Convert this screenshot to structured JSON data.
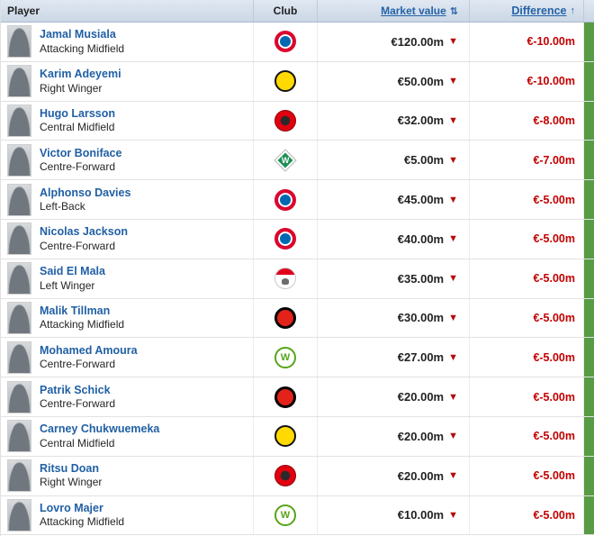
{
  "header": {
    "player": "Player",
    "club": "Club",
    "market_value": "Market value",
    "market_sort_icon": "⇅",
    "difference": "Difference",
    "difference_sort_icon": "↑"
  },
  "icons": {
    "down_arrow": "▼"
  },
  "clubs": {
    "bayern": {
      "name": "Bayern Munich"
    },
    "dortmund": {
      "name": "Borussia Dortmund"
    },
    "frankfurt": {
      "name": "Eintracht Frankfurt"
    },
    "bremen": {
      "name": "Werder Bremen",
      "letter": "W"
    },
    "koeln": {
      "name": "1. FC Köln"
    },
    "leverkusen": {
      "name": "Bayer 04 Leverkusen"
    },
    "wolfsburg": {
      "name": "VfL Wolfsburg",
      "letter": "W"
    }
  },
  "colors": {
    "header_bg": "#d3deea",
    "link_blue": "#2563a8",
    "negative_red": "#c20000",
    "strip_green": "#579b44"
  },
  "table": {
    "rows": [
      {
        "name": "Jamal Musiala",
        "position": "Attacking Midfield",
        "club": "bayern",
        "market_value": "€120.00m",
        "difference": "€-10.00m"
      },
      {
        "name": "Karim Adeyemi",
        "position": "Right Winger",
        "club": "dortmund",
        "market_value": "€50.00m",
        "difference": "€-10.00m"
      },
      {
        "name": "Hugo Larsson",
        "position": "Central Midfield",
        "club": "frankfurt",
        "market_value": "€32.00m",
        "difference": "€-8.00m"
      },
      {
        "name": "Victor Boniface",
        "position": "Centre-Forward",
        "club": "bremen",
        "market_value": "€5.00m",
        "difference": "€-7.00m"
      },
      {
        "name": "Alphonso Davies",
        "position": "Left-Back",
        "club": "bayern",
        "market_value": "€45.00m",
        "difference": "€-5.00m"
      },
      {
        "name": "Nicolas Jackson",
        "position": "Centre-Forward",
        "club": "bayern",
        "market_value": "€40.00m",
        "difference": "€-5.00m"
      },
      {
        "name": "Said El Mala",
        "position": "Left Winger",
        "club": "koeln",
        "market_value": "€35.00m",
        "difference": "€-5.00m"
      },
      {
        "name": "Malik Tillman",
        "position": "Attacking Midfield",
        "club": "leverkusen",
        "market_value": "€30.00m",
        "difference": "€-5.00m"
      },
      {
        "name": "Mohamed Amoura",
        "position": "Centre-Forward",
        "club": "wolfsburg",
        "market_value": "€27.00m",
        "difference": "€-5.00m"
      },
      {
        "name": "Patrik Schick",
        "position": "Centre-Forward",
        "club": "leverkusen",
        "market_value": "€20.00m",
        "difference": "€-5.00m"
      },
      {
        "name": "Carney Chukwuemeka",
        "position": "Central Midfield",
        "club": "dortmund",
        "market_value": "€20.00m",
        "difference": "€-5.00m"
      },
      {
        "name": "Ritsu Doan",
        "position": "Right Winger",
        "club": "frankfurt",
        "market_value": "€20.00m",
        "difference": "€-5.00m"
      },
      {
        "name": "Lovro Majer",
        "position": "Attacking Midfield",
        "club": "wolfsburg",
        "market_value": "€10.00m",
        "difference": "€-5.00m"
      }
    ]
  }
}
